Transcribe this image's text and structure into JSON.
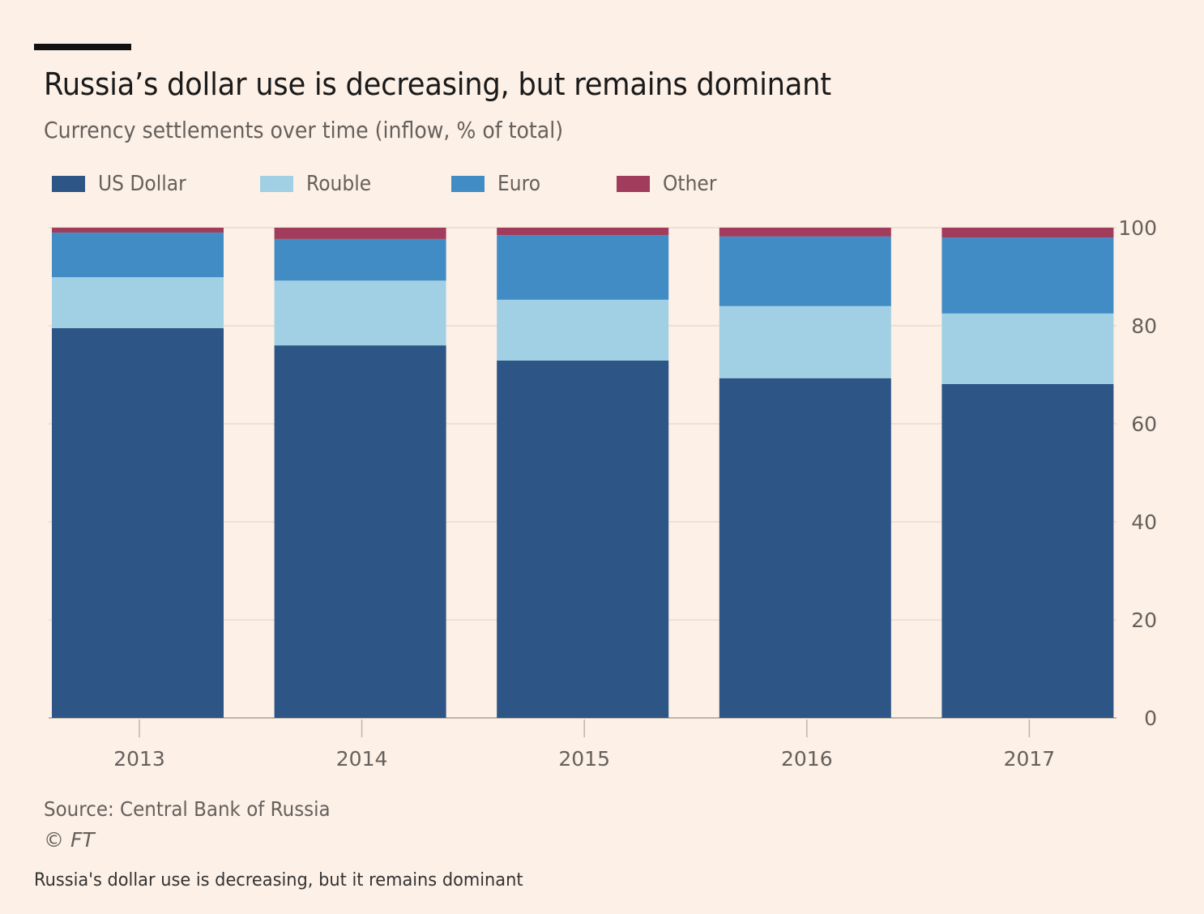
{
  "chart_data": {
    "type": "bar",
    "stacked": true,
    "title": "Russia’s dollar use is decreasing, but remains dominant",
    "subtitle": "Currency settlements over time (inflow, % of total)",
    "xlabel": "",
    "ylabel": "",
    "ylim": [
      0,
      100
    ],
    "yticks": [
      0,
      20,
      40,
      60,
      80,
      100
    ],
    "y_axis_side": "right",
    "grid": true,
    "legend_position": "top-left",
    "categories": [
      "2013",
      "2014",
      "2015",
      "2016",
      "2017"
    ],
    "series": [
      {
        "name": "US Dollar",
        "color": "#2d5586",
        "values": [
          79.5,
          76.0,
          72.9,
          69.3,
          68.1
        ]
      },
      {
        "name": "Rouble",
        "color": "#a1d0e4",
        "values": [
          10.4,
          13.2,
          12.4,
          14.7,
          14.4
        ]
      },
      {
        "name": "Euro",
        "color": "#428cc6",
        "values": [
          9.1,
          8.5,
          13.2,
          14.2,
          15.5
        ]
      },
      {
        "name": "Other",
        "color": "#a23c5c",
        "values": [
          1.0,
          2.3,
          1.5,
          1.8,
          2.0
        ]
      }
    ],
    "source": "Source: Central Bank of Russia",
    "credit": "© FT"
  },
  "caption": "Russia's dollar use is decreasing, but it remains dominant"
}
